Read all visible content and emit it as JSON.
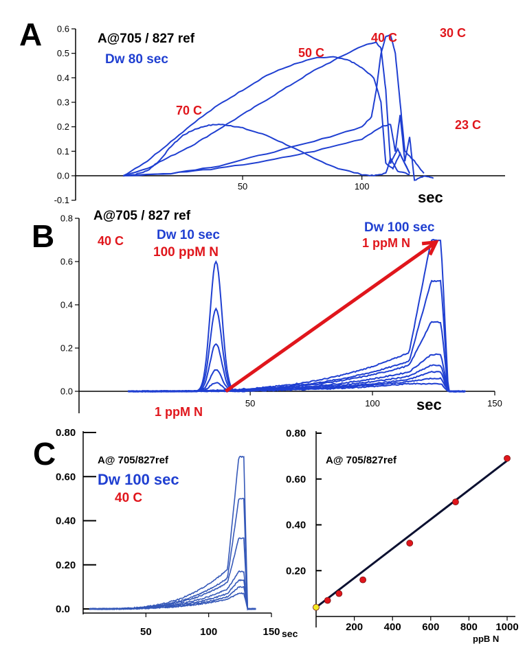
{
  "colors": {
    "trace": "#1f3fd1",
    "trace_c": "#3558b8",
    "red": "#e0161c",
    "axis": "#000000",
    "fit": "#0b1030",
    "point": "#e0161c",
    "blank": "#f2ea22"
  },
  "chart_data": [
    {
      "panel": "A",
      "type": "line",
      "title": "A@705 / 827 ref",
      "subtitle": "Dw 80 sec",
      "xlabel": "sec",
      "ylabel": "",
      "xlim": [
        -20,
        160
      ],
      "ylim": [
        -0.1,
        0.6
      ],
      "xticks": [
        "50",
        "100"
      ],
      "yticks": [
        "-0.1",
        "0.0",
        "0.1",
        "0.2",
        "0.3",
        "0.4",
        "0.5",
        "0.6"
      ],
      "series": [
        {
          "name": "70 C",
          "x": [
            0,
            5,
            10,
            15,
            20,
            25,
            30,
            35,
            40,
            45,
            50,
            60,
            70,
            80,
            90,
            100,
            105,
            110,
            112,
            115,
            120
          ],
          "y": [
            0,
            0.005,
            0.02,
            0.06,
            0.12,
            0.165,
            0.19,
            0.205,
            0.21,
            0.205,
            0.195,
            0.165,
            0.12,
            0.07,
            0.03,
            0.005,
            0.0,
            0.01,
            0.07,
            0.02,
            0.005
          ]
        },
        {
          "name": "50 C",
          "x": [
            0,
            10,
            20,
            30,
            40,
            50,
            60,
            70,
            80,
            88,
            95,
            100,
            105,
            108,
            110,
            113,
            116,
            120
          ],
          "y": [
            0,
            0.06,
            0.14,
            0.22,
            0.29,
            0.35,
            0.41,
            0.45,
            0.48,
            0.485,
            0.47,
            0.44,
            0.4,
            0.3,
            0.05,
            0.03,
            0.09,
            0.01
          ]
        },
        {
          "name": "40 C",
          "x": [
            0,
            10,
            20,
            30,
            40,
            50,
            60,
            70,
            80,
            90,
            100,
            106,
            108,
            110,
            112,
            115,
            120
          ],
          "y": [
            0,
            0.03,
            0.08,
            0.13,
            0.19,
            0.25,
            0.31,
            0.37,
            0.43,
            0.48,
            0.53,
            0.545,
            0.52,
            0.35,
            0.05,
            0.11,
            0.01
          ]
        },
        {
          "name": "30 C",
          "x": [
            0,
            20,
            40,
            60,
            80,
            100,
            104,
            106,
            108,
            110,
            112,
            114,
            116,
            118,
            122,
            126
          ],
          "y": [
            0,
            0.01,
            0.04,
            0.09,
            0.14,
            0.2,
            0.24,
            0.35,
            0.5,
            0.57,
            0.575,
            0.5,
            0.3,
            0.1,
            0.06,
            0.01
          ]
        },
        {
          "name": "23 C",
          "x": [
            0,
            20,
            40,
            60,
            80,
            100,
            108,
            112,
            114,
            116,
            118,
            120,
            122,
            126,
            130
          ],
          "y": [
            0,
            0.01,
            0.03,
            0.06,
            0.1,
            0.15,
            0.2,
            0.21,
            0.1,
            0.25,
            0.06,
            0.16,
            -0.02,
            0.0,
            -0.01
          ]
        }
      ]
    },
    {
      "panel": "B",
      "type": "line",
      "title": "A@705 / 827 ref",
      "temperature": "40 C",
      "xlabel": "sec",
      "ylabel": "",
      "xlim": [
        -20,
        150
      ],
      "ylim": [
        0,
        0.8
      ],
      "xticks": [
        "50",
        "100",
        "150"
      ],
      "yticks": [
        "0.0",
        "0.2",
        "0.4",
        "0.6",
        "0.8"
      ],
      "label_dw10": "Dw 10 sec",
      "label_100ppm": "100 ppM N",
      "label_dw100": "Dw 100 sec",
      "label_1ppm_top": "1 ppM N",
      "label_1ppm_bottom": "1 ppM N",
      "series_short": [
        {
          "peak_x": 36,
          "peak_y": 0.6
        },
        {
          "peak_x": 36,
          "peak_y": 0.38
        },
        {
          "peak_x": 36,
          "peak_y": 0.22
        },
        {
          "peak_x": 36,
          "peak_y": 0.1
        },
        {
          "peak_x": 36,
          "peak_y": 0.04
        }
      ],
      "series_long": [
        {
          "base": 0.18,
          "peak_y": 0.7
        },
        {
          "base": 0.14,
          "peak_y": 0.51
        },
        {
          "base": 0.12,
          "peak_y": 0.32
        },
        {
          "base": 0.09,
          "peak_y": 0.17
        },
        {
          "base": 0.07,
          "peak_y": 0.12
        },
        {
          "base": 0.055,
          "peak_y": 0.09
        },
        {
          "base": 0.045,
          "peak_y": 0.06
        },
        {
          "base": 0.035,
          "peak_y": 0.035
        }
      ],
      "arrow": {
        "from": [
          40,
          0.0
        ],
        "to": [
          126,
          0.69
        ]
      }
    },
    {
      "panel": "C-left",
      "type": "line",
      "title": "A@ 705/827ref",
      "subtitle": "Dw 100 sec",
      "temperature": "40 C",
      "xlabel": "sec",
      "xlim": [
        0,
        150
      ],
      "ylim": [
        0,
        0.8
      ],
      "xticks": [
        "50",
        "100",
        "150"
      ],
      "yticks": [
        "0.0",
        "0.20",
        "0.40",
        "0.60",
        "0.80"
      ],
      "series_long": [
        {
          "base": 0.18,
          "peak_y": 0.69
        },
        {
          "base": 0.14,
          "peak_y": 0.5
        },
        {
          "base": 0.12,
          "peak_y": 0.32
        },
        {
          "base": 0.09,
          "peak_y": 0.17
        },
        {
          "base": 0.07,
          "peak_y": 0.13
        },
        {
          "base": 0.055,
          "peak_y": 0.1
        },
        {
          "base": 0.045,
          "peak_y": 0.07
        }
      ]
    },
    {
      "panel": "C-right",
      "type": "scatter",
      "title": "A@ 705/827ref",
      "xlabel": "ppB N",
      "ylabel": "",
      "xlim": [
        0,
        1000
      ],
      "ylim": [
        0,
        0.8
      ],
      "xticks": [
        "200",
        "400",
        "600",
        "800",
        "1000"
      ],
      "yticks": [
        "0.20",
        "0.40",
        "0.60",
        "0.80"
      ],
      "x": [
        0,
        60,
        120,
        245,
        490,
        730,
        1000
      ],
      "y": [
        0.04,
        0.07,
        0.1,
        0.16,
        0.32,
        0.5,
        0.69
      ],
      "fit": {
        "x": [
          0,
          1000
        ],
        "y": [
          0.04,
          0.68
        ]
      }
    }
  ]
}
